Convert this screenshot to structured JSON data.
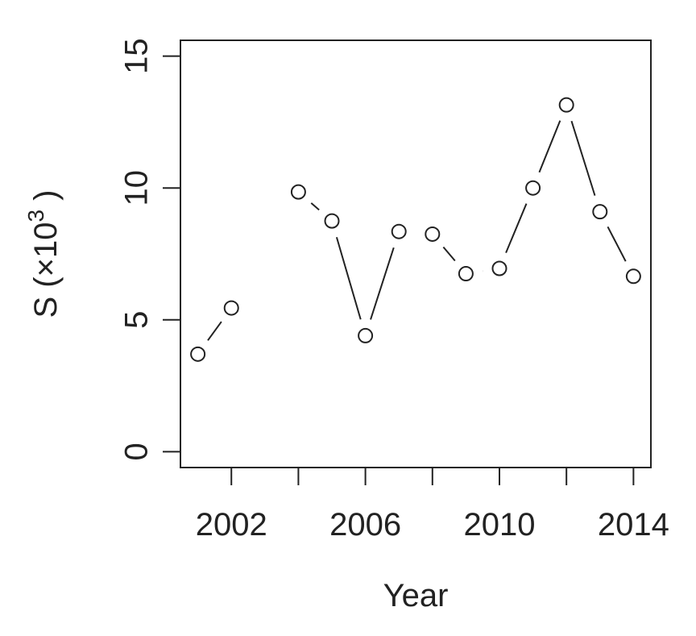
{
  "chart_data": {
    "type": "line",
    "xlabel": "Year",
    "ylabel": "S  (×10",
    "ylabel_superscript": "3",
    "ylabel_end": " )",
    "x": [
      2001,
      2002,
      2003,
      2004,
      2005,
      2006,
      2007,
      2008,
      2009,
      2010,
      2011,
      2012,
      2013,
      2014
    ],
    "values": [
      3.7,
      5.45,
      null,
      9.85,
      8.75,
      4.4,
      8.35,
      8.25,
      6.75,
      6.95,
      10.0,
      13.15,
      9.1,
      6.65
    ],
    "color": "#222222",
    "xlim": [
      2000.48,
      2014.52
    ],
    "xticks": [
      2002,
      {
        "value": 2004,
        "label": null
      },
      2006,
      {
        "value": 2008,
        "label": null
      },
      2010,
      {
        "value": 2012,
        "label": null
      },
      2014
    ],
    "ylim": [
      -0.6,
      15.6
    ],
    "yticks": [
      0,
      5,
      10,
      15
    ]
  }
}
